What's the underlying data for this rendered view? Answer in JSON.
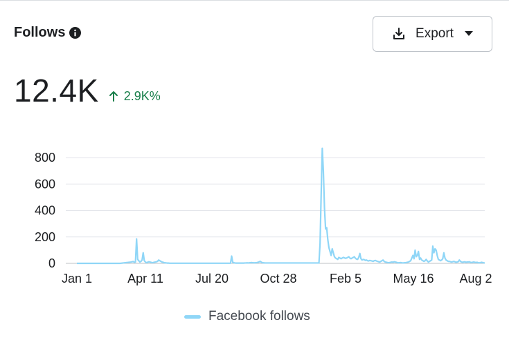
{
  "card": {
    "title": "Follows",
    "info_icon": "info-icon",
    "export_label": "Export",
    "export_icon": "download-icon",
    "dropdown_icon": "caret-down-icon",
    "metric_value": "12.4K",
    "metric_change": "2.9K%",
    "change_icon": "arrow-up-icon",
    "change_color": "#1a7f4b"
  },
  "chart_data": {
    "type": "line",
    "x_tick_labels": [
      "Jan 1",
      "Apr 11",
      "Jul 20",
      "Oct 28",
      "Feb 5",
      "May 16",
      "Aug 2"
    ],
    "y_ticks": [
      0,
      200,
      400,
      600,
      800
    ],
    "ylim": [
      0,
      900
    ],
    "grid": true,
    "legend_position": "bottom-center",
    "series": [
      {
        "name": "Facebook follows",
        "color": "#8fd6f7",
        "values": [
          0,
          0,
          0,
          0,
          0,
          0,
          0,
          0,
          0,
          0,
          0,
          0,
          0,
          0,
          0,
          0,
          0,
          0,
          0,
          0,
          0,
          0,
          0,
          0,
          0,
          0,
          0,
          0,
          0,
          0,
          0,
          0,
          0,
          0,
          0,
          0,
          0,
          0,
          0,
          0,
          1,
          2,
          3,
          4,
          5,
          6,
          7,
          8,
          9,
          10,
          12,
          14,
          8,
          10,
          185,
          30,
          20,
          10,
          15,
          25,
          80,
          20,
          10,
          5,
          8,
          12,
          10,
          8,
          5,
          6,
          8,
          10,
          12,
          15,
          25,
          20,
          15,
          10,
          8,
          5,
          4,
          3,
          2,
          2,
          1,
          1,
          1,
          1,
          1,
          1,
          1,
          1,
          1,
          1,
          1,
          1,
          1,
          1,
          1,
          1,
          1,
          1,
          1,
          1,
          1,
          1,
          1,
          1,
          1,
          1,
          1,
          1,
          1,
          1,
          1,
          1,
          1,
          1,
          1,
          1,
          1,
          1,
          1,
          1,
          1,
          1,
          1,
          1,
          1,
          1,
          1,
          1,
          1,
          1,
          1,
          1,
          1,
          1,
          1,
          1,
          55,
          8,
          5,
          3,
          2,
          2,
          2,
          2,
          2,
          2,
          2,
          2,
          3,
          3,
          4,
          3,
          4,
          5,
          6,
          5,
          4,
          4,
          5,
          6,
          8,
          12,
          15,
          8,
          5,
          4,
          3,
          3,
          3,
          3,
          3,
          3,
          3,
          3,
          3,
          3,
          3,
          3,
          3,
          3,
          3,
          3,
          3,
          3,
          3,
          3,
          3,
          3,
          3,
          3,
          3,
          3,
          3,
          3,
          3,
          3,
          3,
          3,
          3,
          3,
          3,
          3,
          3,
          3,
          3,
          3,
          3,
          3,
          3,
          3,
          3,
          3,
          3,
          3,
          3,
          3,
          150,
          520,
          870,
          700,
          420,
          260,
          270,
          180,
          120,
          90,
          60,
          110,
          80,
          50,
          40,
          35,
          30,
          45,
          40,
          35,
          40,
          45,
          42,
          38,
          40,
          45,
          50,
          40,
          35,
          40,
          45,
          50,
          38,
          32,
          30,
          45,
          75,
          35,
          25,
          30,
          28,
          22,
          25,
          20,
          18,
          22,
          20,
          18,
          15,
          20,
          22,
          18,
          15,
          12,
          10,
          15,
          20,
          25,
          15,
          10,
          8,
          6,
          5,
          6,
          8,
          10,
          8,
          12,
          10,
          8,
          5,
          4,
          5,
          6,
          4,
          3,
          4,
          5,
          6,
          8,
          10,
          15,
          20,
          40,
          60,
          35,
          100,
          50,
          60,
          90,
          30,
          40,
          25,
          20,
          15,
          20,
          30,
          18,
          10,
          15,
          20,
          25,
          130,
          80,
          110,
          100,
          60,
          30,
          25,
          20,
          25,
          35,
          80,
          40,
          25,
          20,
          15,
          15,
          12,
          10,
          12,
          15,
          12,
          8,
          10,
          12,
          25,
          15,
          10,
          8,
          10,
          12,
          8,
          10,
          10,
          12,
          8,
          6,
          8,
          10,
          8,
          6,
          8,
          5,
          4,
          5,
          8,
          6,
          4,
          3
        ]
      }
    ]
  }
}
